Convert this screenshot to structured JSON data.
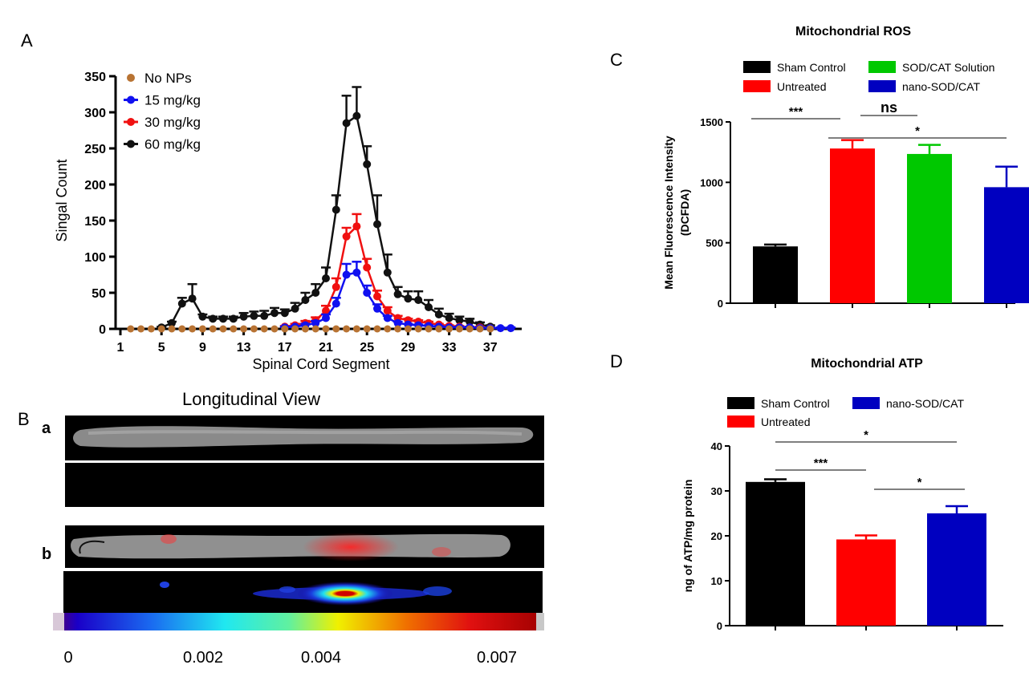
{
  "panels": {
    "a_letter": "A",
    "b_letter": "B",
    "c_letter": "C",
    "d_letter": "D",
    "b_sub_a": "a",
    "b_sub_b": "b",
    "b_title": "Longitudinal View",
    "b_colorbar_ticks": [
      "0",
      "0.002",
      "0.004",
      "0.007"
    ],
    "b_colorbar_range": [
      0,
      0.007
    ]
  },
  "colors": {
    "no_nps": "#b87333",
    "d15": "#1010f0",
    "d30": "#f01010",
    "d60": "#111111",
    "sham": "#000000",
    "untreated": "#ff0000",
    "sodcat_solution": "#00c800",
    "nano": "#0000c0"
  },
  "chart_data": [
    {
      "id": "A",
      "type": "line",
      "title": "",
      "xlabel": "Spinal Cord Segment",
      "ylabel": "Singal Count",
      "xlim": [
        0,
        40
      ],
      "ylim": [
        0,
        350
      ],
      "xticks": [
        "1",
        "5",
        "9",
        "13",
        "17",
        "21",
        "25",
        "29",
        "33",
        "37"
      ],
      "yticks": [
        "0",
        "50",
        "100",
        "150",
        "200",
        "250",
        "300",
        "350"
      ],
      "legend_position": "top-left",
      "series": [
        {
          "name": "No NPs",
          "color": "#b87333",
          "x": [
            2,
            3,
            4,
            5,
            6,
            7,
            8,
            9,
            10,
            11,
            12,
            13,
            14,
            15,
            16,
            17,
            18,
            19,
            20,
            21,
            22,
            23,
            24,
            25,
            26,
            27,
            28,
            29,
            30,
            31,
            32,
            33,
            34,
            35,
            36,
            37
          ],
          "y": [
            0,
            0,
            0,
            0,
            0,
            0,
            0,
            0,
            0,
            0,
            0,
            0,
            0,
            0,
            0,
            0,
            0,
            0,
            0,
            0,
            0,
            0,
            0,
            0,
            0,
            0,
            0,
            0,
            0,
            0,
            0,
            0,
            0,
            0,
            0,
            0
          ],
          "err": [
            0,
            0,
            0,
            0,
            0,
            0,
            0,
            0,
            0,
            0,
            0,
            0,
            0,
            0,
            0,
            0,
            0,
            0,
            0,
            0,
            0,
            0,
            0,
            0,
            0,
            0,
            0,
            0,
            0,
            0,
            0,
            0,
            0,
            0,
            0,
            0
          ]
        },
        {
          "name": "15 mg/kg",
          "color": "#1010f0",
          "x": [
            17,
            18,
            19,
            20,
            21,
            22,
            23,
            24,
            25,
            26,
            27,
            28,
            29,
            30,
            31,
            32,
            33,
            34,
            35,
            36,
            37,
            38,
            39
          ],
          "y": [
            2,
            3,
            5,
            8,
            15,
            35,
            75,
            78,
            50,
            28,
            15,
            8,
            6,
            5,
            4,
            3,
            2,
            2,
            2,
            1,
            1,
            1,
            1
          ],
          "err": [
            1,
            1,
            2,
            3,
            5,
            8,
            15,
            15,
            10,
            6,
            3,
            2,
            1,
            1,
            1,
            1,
            1,
            1,
            1,
            1,
            1,
            1,
            1
          ]
        },
        {
          "name": "30 mg/kg",
          "color": "#f01010",
          "x": [
            17,
            18,
            19,
            20,
            21,
            22,
            23,
            24,
            25,
            26,
            27,
            28,
            29,
            30,
            31,
            32,
            33,
            34,
            35,
            36,
            37
          ],
          "y": [
            3,
            5,
            8,
            12,
            25,
            58,
            128,
            142,
            85,
            45,
            25,
            15,
            12,
            10,
            8,
            6,
            4,
            3,
            2,
            2,
            1
          ],
          "err": [
            1,
            2,
            3,
            4,
            7,
            12,
            12,
            17,
            12,
            8,
            5,
            3,
            2,
            2,
            2,
            1,
            1,
            1,
            1,
            1,
            1
          ]
        },
        {
          "name": "60 mg/kg",
          "color": "#111111",
          "x": [
            5,
            6,
            7,
            8,
            9,
            10,
            11,
            12,
            13,
            14,
            15,
            16,
            17,
            18,
            19,
            20,
            21,
            22,
            23,
            24,
            25,
            26,
            27,
            28,
            29,
            30,
            31,
            32,
            33,
            34,
            35,
            36,
            37
          ],
          "y": [
            2,
            8,
            35,
            42,
            17,
            14,
            14,
            14,
            17,
            18,
            18,
            22,
            22,
            28,
            40,
            50,
            70,
            165,
            285,
            295,
            228,
            145,
            78,
            48,
            42,
            40,
            30,
            20,
            15,
            12,
            10,
            6,
            3
          ],
          "err": [
            1,
            2,
            8,
            20,
            3,
            3,
            3,
            3,
            5,
            6,
            7,
            7,
            5,
            8,
            10,
            12,
            15,
            20,
            38,
            40,
            25,
            40,
            25,
            10,
            10,
            12,
            10,
            8,
            6,
            5,
            4,
            3,
            2
          ]
        }
      ]
    },
    {
      "id": "C",
      "type": "bar",
      "title": "Mitochondrial ROS",
      "xlabel": "",
      "ylabel": "Mean  Fluorescence Intensity\n(DCFDA)",
      "ylim": [
        0,
        1500
      ],
      "yticks": [
        "0",
        "500",
        "1000",
        "1500"
      ],
      "categories": [
        "Sham Control",
        "Untreated",
        "SOD/CAT Solution",
        "nano-SOD/CAT"
      ],
      "values": [
        470,
        1280,
        1235,
        960
      ],
      "errors": [
        15,
        70,
        75,
        170
      ],
      "bar_colors": [
        "#000000",
        "#ff0000",
        "#00c800",
        "#0000c0"
      ],
      "legend": [
        "Sham Control",
        "SOD/CAT Solution",
        "Untreated",
        "nano-SOD/CAT"
      ],
      "legend_position": "top",
      "annotations": [
        {
          "label": "***",
          "from": 0,
          "to": 1
        },
        {
          "label": "ns",
          "from": 1,
          "to": 2
        },
        {
          "label": "*",
          "from": 1,
          "to": 3
        }
      ]
    },
    {
      "id": "D",
      "type": "bar",
      "title": "Mitochondrial ATP",
      "xlabel": "",
      "ylabel": "ng of ATP/mg protein",
      "ylim": [
        0,
        40
      ],
      "yticks": [
        "0",
        "10",
        "20",
        "30",
        "40"
      ],
      "categories": [
        "Sham Control",
        "Untreated",
        "nano-SOD/CAT"
      ],
      "values": [
        32,
        19.2,
        25
      ],
      "errors": [
        0.6,
        0.9,
        1.6
      ],
      "bar_colors": [
        "#000000",
        "#ff0000",
        "#0000c0"
      ],
      "legend": [
        "Sham Control",
        "nano-SOD/CAT",
        "Untreated"
      ],
      "legend_position": "top",
      "annotations": [
        {
          "label": "*",
          "from": 0,
          "to": 2
        },
        {
          "label": "***",
          "from": 0,
          "to": 1
        },
        {
          "label": "*",
          "from": 1,
          "to": 2
        }
      ]
    }
  ]
}
